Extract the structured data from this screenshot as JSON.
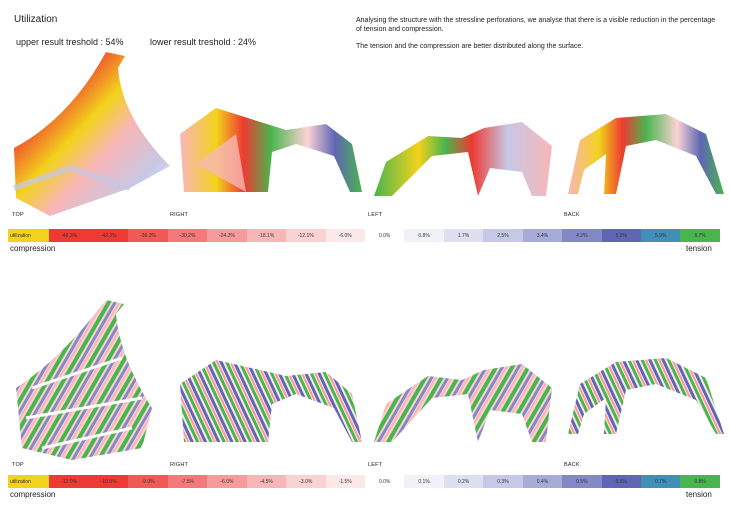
{
  "page": {
    "title": "Utilization",
    "upper_threshold": "upper result treshold : 54%",
    "lower_threshold": "lower result treshold : 24%",
    "description": [
      "Analysing the structure with the stressline perforations, we analyse that there is a visible reduction in the percentage of tension and compression.",
      "The tension and the compression are better distributed along the surface."
    ]
  },
  "views": {
    "top": "TOP",
    "right": "RIGHT",
    "left": "LEFT",
    "back": "BACK"
  },
  "scale1": {
    "label": "utilization",
    "ticks": [
      "-48.3%",
      "-42.3%",
      "-36.3%",
      "-30.2%",
      "-24.2%",
      "-18.1%",
      "-12.1%",
      "-6.0%",
      "0.0%",
      "0.8%",
      "1.7%",
      "2.5%",
      "3.4%",
      "4.2%",
      "5.0%",
      "5.9%",
      "6.7%"
    ],
    "colors": [
      "#f3d21c",
      "#ee3a32",
      "#ee3a32",
      "#f05a56",
      "#f3797a",
      "#f69a9b",
      "#f8b6b7",
      "#fbd2d3",
      "#fbe9ea",
      "#ffffff",
      "#f1f1f8",
      "#dedff0",
      "#c6c8e6",
      "#a7abd8",
      "#8388c6",
      "#5f66b5",
      "#3f8fb8",
      "#49b54d"
    ],
    "left_end": "compression",
    "right_end": "tension"
  },
  "scale2": {
    "label": "utilization",
    "ticks": [
      "-12.0%",
      "-10.5%",
      "-9.0%",
      "-7.5%",
      "-6.0%",
      "-4.5%",
      "-3.0%",
      "-1.5%",
      "0.0%",
      "0.1%",
      "0.2%",
      "0.3%",
      "0.4%",
      "0.5%",
      "0.6%",
      "0.7%",
      "0.8%"
    ],
    "colors": [
      "#f3d21c",
      "#ee3a32",
      "#ee3a32",
      "#f05a56",
      "#f3797a",
      "#f69a9b",
      "#f8b6b7",
      "#fbd2d3",
      "#fbe9ea",
      "#ffffff",
      "#f1f1f8",
      "#dedff0",
      "#c6c8e6",
      "#a7abd8",
      "#8388c6",
      "#5f66b5",
      "#3f8fb8",
      "#49b54d"
    ],
    "left_end": "compression",
    "right_end": "tension"
  }
}
